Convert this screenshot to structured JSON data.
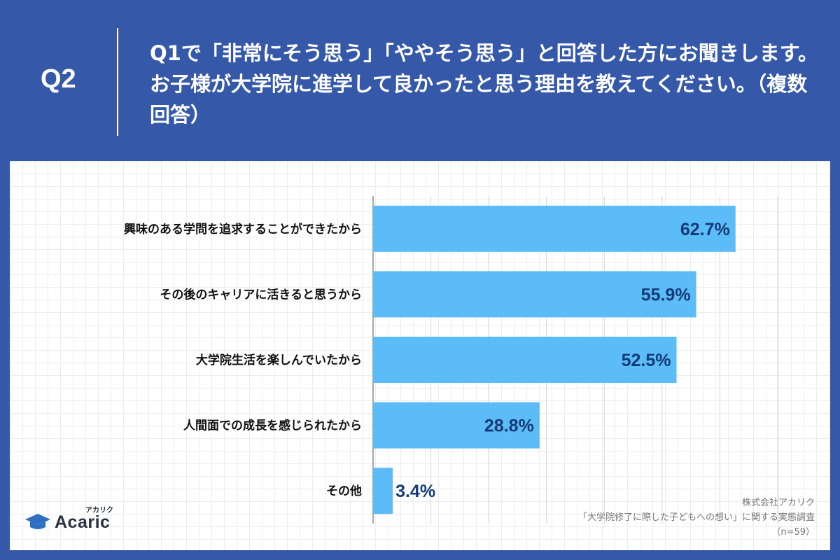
{
  "header": {
    "q_number": "Q2",
    "question": "Q1で「非常にそう思う」「ややそう思う」と回答した方にお聞きします。お子様が大学院に進学して良かったと思う理由を教えてください。（複数回答）"
  },
  "chart_data": {
    "type": "bar",
    "orientation": "horizontal",
    "categories": [
      "興味のある学問を追求することができたから",
      "その後のキャリアに活きると思うから",
      "大学院生活を楽しんでいたから",
      "人間面での成長を感じられたから",
      "その他"
    ],
    "values": [
      62.7,
      55.9,
      52.5,
      28.8,
      3.4
    ],
    "labels": [
      "62.7%",
      "55.9%",
      "52.5%",
      "28.8%",
      "3.4%"
    ],
    "unit": "%",
    "xlim": [
      0,
      70
    ],
    "grid": true,
    "bar_color": "#5bbcf7",
    "label_color": "#143a78"
  },
  "logo": {
    "name": "Acaric",
    "kana": "アカリク"
  },
  "source": {
    "company": "株式会社アカリク",
    "survey": "「大学院修了に際した子どもへの想い」に関する実態調査",
    "sample": "（n=59）"
  },
  "colors": {
    "background": "#3558a8",
    "panel": "#ffffff",
    "bar": "#5bbcf7"
  }
}
